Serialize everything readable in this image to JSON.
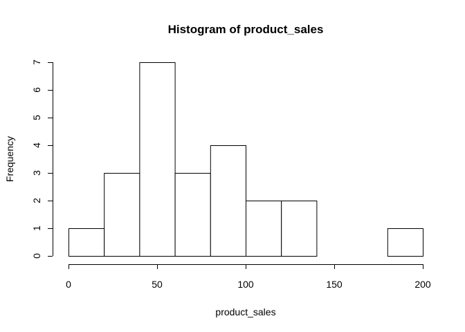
{
  "chart_data": {
    "type": "bar",
    "title": "Histogram of product_sales",
    "xlabel": "product_sales",
    "ylabel": "Frequency",
    "bins": [
      {
        "start": 0,
        "end": 20,
        "count": 1
      },
      {
        "start": 20,
        "end": 40,
        "count": 3
      },
      {
        "start": 40,
        "end": 60,
        "count": 7
      },
      {
        "start": 60,
        "end": 80,
        "count": 3
      },
      {
        "start": 80,
        "end": 100,
        "count": 4
      },
      {
        "start": 100,
        "end": 120,
        "count": 2
      },
      {
        "start": 120,
        "end": 140,
        "count": 2
      },
      {
        "start": 140,
        "end": 160,
        "count": 0
      },
      {
        "start": 160,
        "end": 180,
        "count": 0
      },
      {
        "start": 180,
        "end": 200,
        "count": 1
      }
    ],
    "xlim": [
      0,
      200
    ],
    "ylim": [
      0,
      7
    ],
    "x_ticks": [
      0,
      50,
      100,
      150,
      200
    ],
    "y_ticks": [
      0,
      1,
      2,
      3,
      4,
      5,
      6,
      7
    ],
    "grid": false,
    "bar_fill": "#ffffff",
    "bar_stroke": "#000000"
  }
}
